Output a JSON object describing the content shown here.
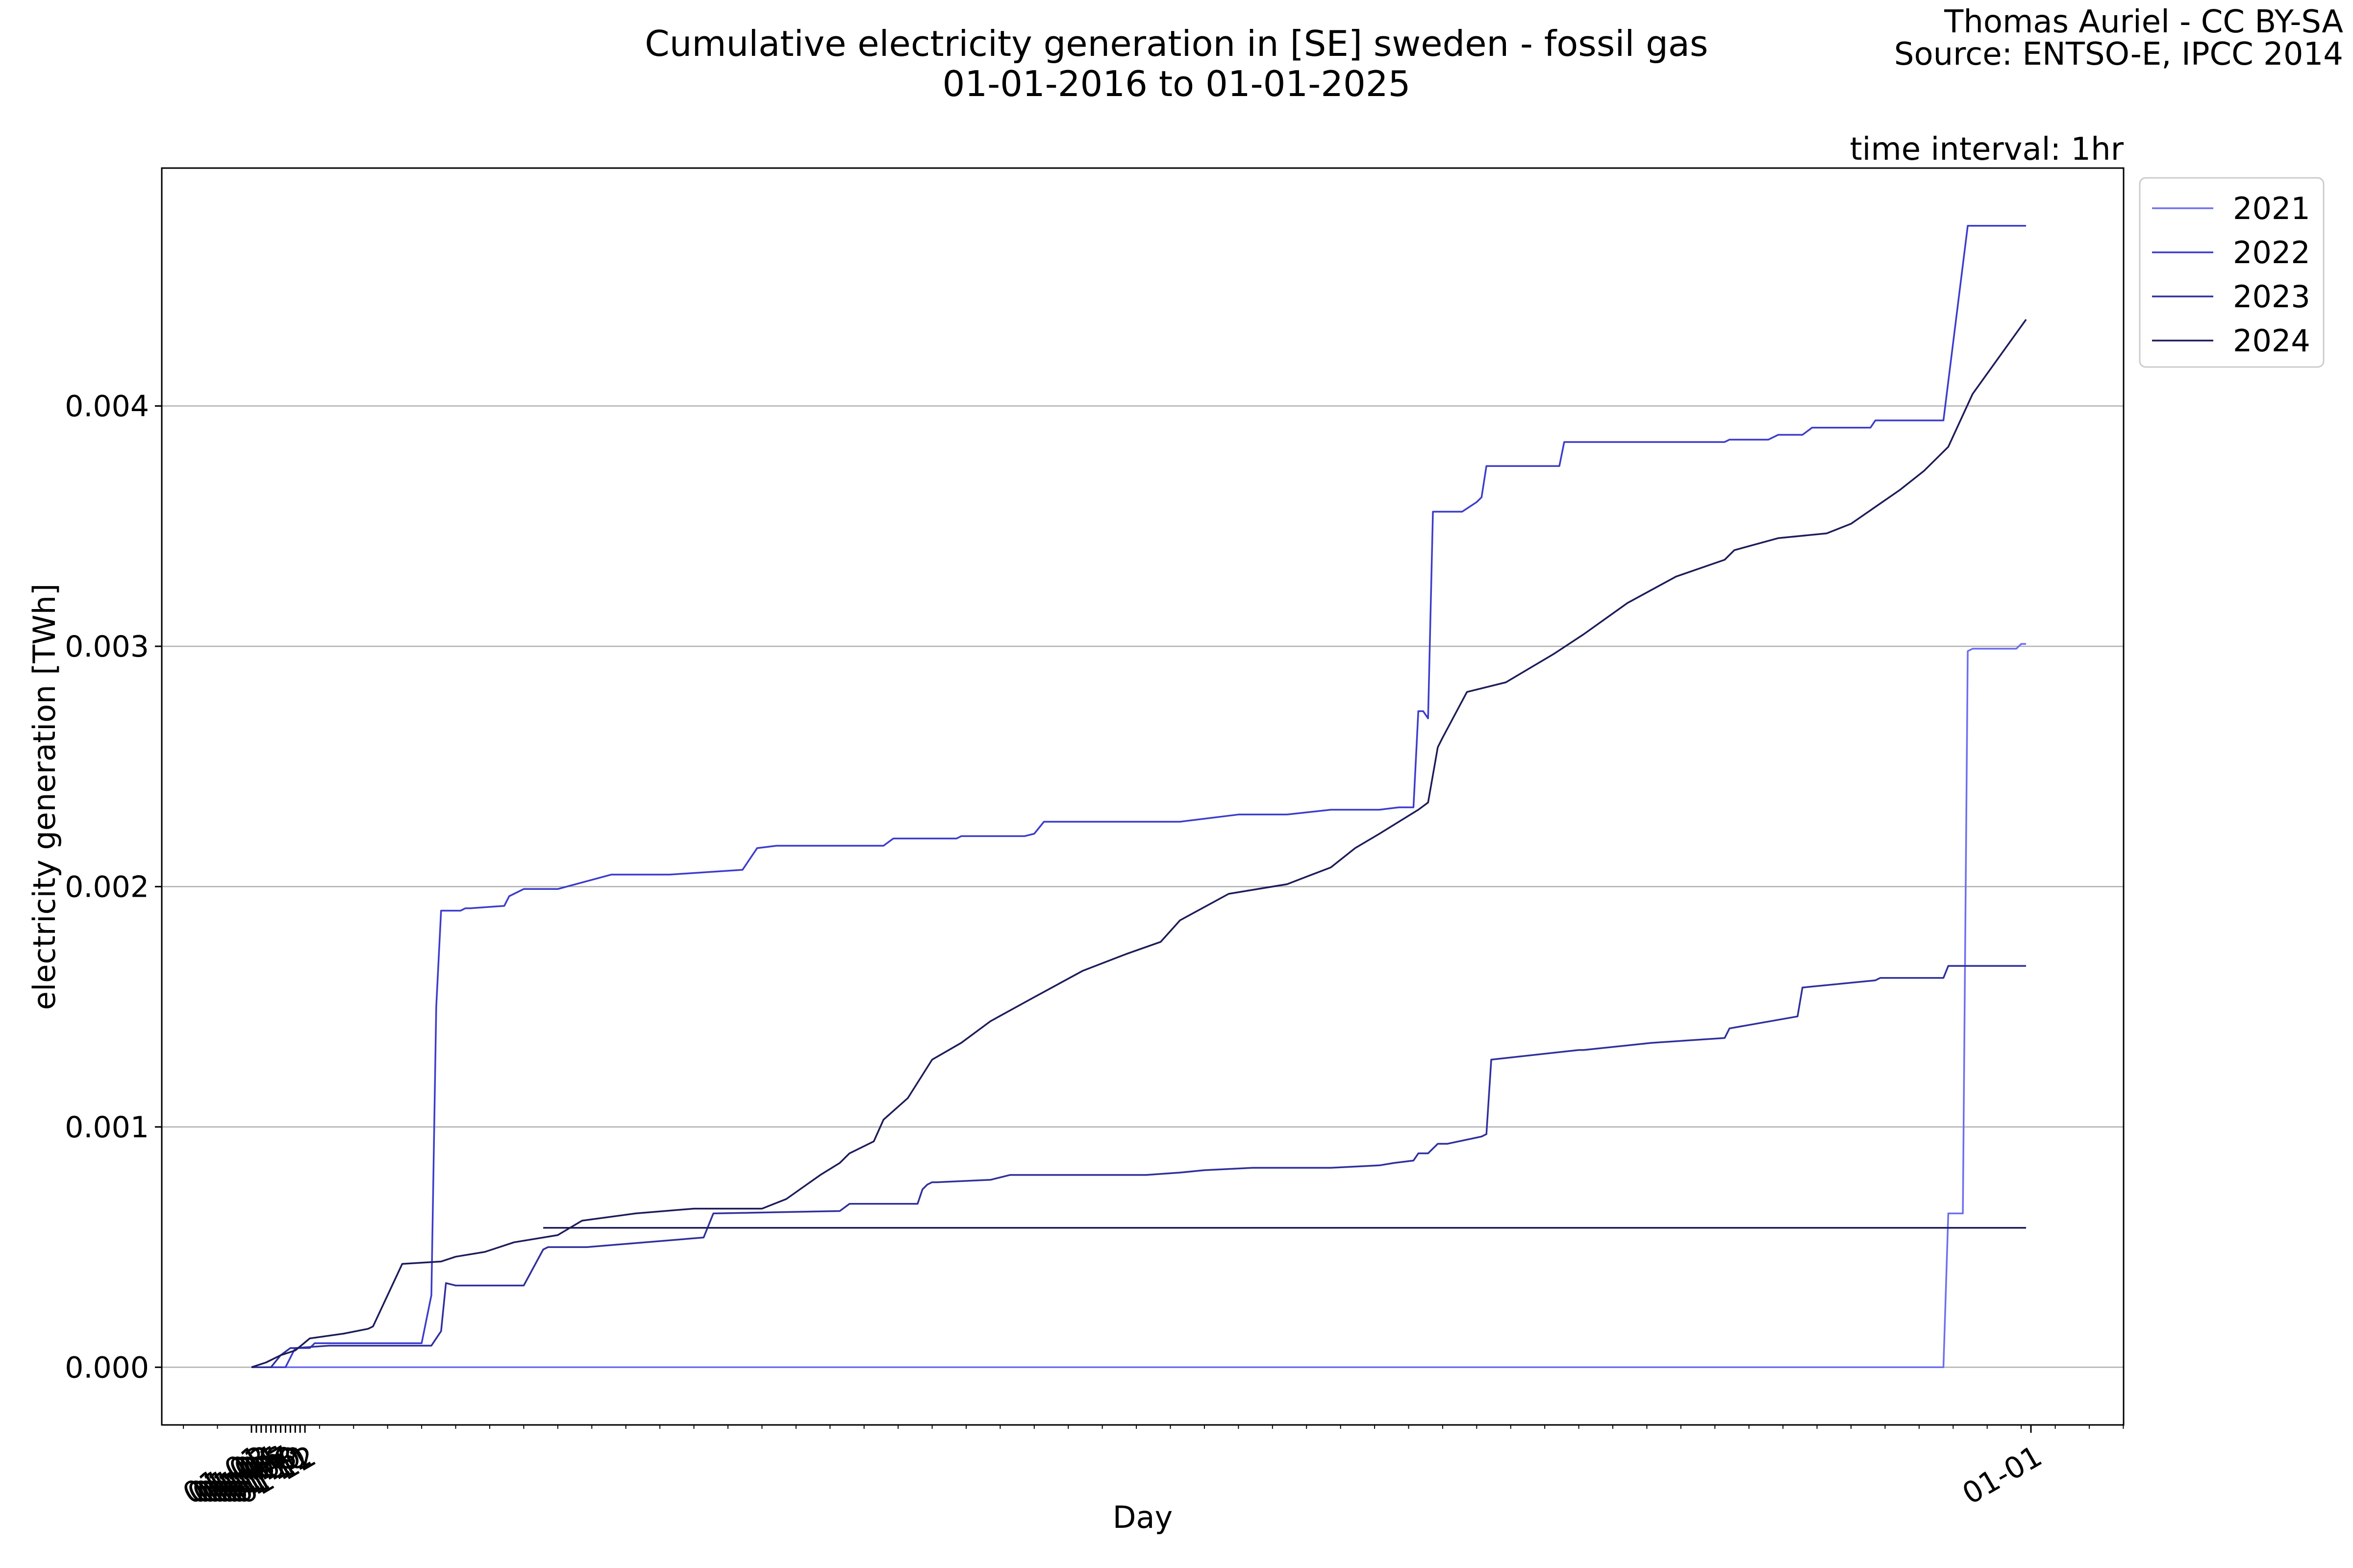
{
  "chart_data": {
    "type": "line",
    "title": "Cumulative electricity generation in [SE] sweden - fossil gas",
    "subtitle": "01-01-2016 to 01-01-2025",
    "credit": "Thomas Auriel - CC BY-SA",
    "source": "Source: ENTSO-E, IPCC 2014",
    "note": "time interval: 1hr",
    "xlabel": "Day",
    "ylabel": "electricity generation [TWh]",
    "x_ticks": [
      "01-01",
      "01-02",
      "01-03",
      "01-04",
      "01-05",
      "01-06",
      "01-07",
      "01-08",
      "01-09",
      "01-10",
      "01-11",
      "01-12",
      "01-01"
    ],
    "y_ticks": [
      "0.000",
      "0.001",
      "0.002",
      "0.003",
      "0.004"
    ],
    "ylim": [
      -0.00024,
      0.00499
    ],
    "grid": "horizontal",
    "legend_placement": "outside top-right",
    "series": [
      {
        "name": "2021",
        "color": "#6d6ff0",
        "x": [
          "01-01",
          "12-14",
          "12-15",
          "12-18",
          "12-19",
          "12-20",
          "12-29",
          "12-30",
          "12-31"
        ],
        "y": [
          0,
          0,
          0.00064,
          0.00064,
          0.00298,
          0.00299,
          0.00299,
          0.00301,
          0.00301
        ]
      },
      {
        "name": "2022",
        "color": "#3c3ccd",
        "x": [
          "01-01",
          "01-08",
          "01-10",
          "01-13",
          "01-14",
          "01-20",
          "01-30",
          "02-05",
          "02-07",
          "02-08",
          "02-09",
          "02-13",
          "02-14",
          "02-15",
          "02-22",
          "02-23",
          "02-26",
          "03-04",
          "03-15",
          "03-27",
          "04-11",
          "04-14",
          "04-18",
          "05-10",
          "05-12",
          "05-25",
          "05-26",
          "06-08",
          "06-10",
          "06-12",
          "07-08",
          "07-10",
          "07-22",
          "08-01",
          "08-10",
          "08-20",
          "08-24",
          "08-25",
          "08-27",
          "08-28",
          "08-29",
          "08-30",
          "08-31",
          "09-06",
          "09-09",
          "09-10",
          "09-11",
          "09-15",
          "09-26",
          "09-27",
          "09-30",
          "10-15",
          "10-30",
          "10-31",
          "11-08",
          "11-10",
          "11-15",
          "11-17",
          "11-29",
          "11-30",
          "12-05",
          "12-13",
          "12-14",
          "12-19",
          "12-31"
        ],
        "y": [
          0,
          0,
          8e-05,
          8e-05,
          0.0001,
          0.0001,
          0.0001,
          0.0001,
          0.0003,
          0.0015,
          0.0019,
          0.0019,
          0.00191,
          0.00191,
          0.00192,
          0.00196,
          0.00199,
          0.00199,
          0.00205,
          0.00205,
          0.00207,
          0.00216,
          0.00217,
          0.00217,
          0.0022,
          0.0022,
          0.00221,
          0.00221,
          0.00222,
          0.00227,
          0.00227,
          0.00227,
          0.0023,
          0.0023,
          0.00232,
          0.00232,
          0.00233,
          0.00233,
          0.00233,
          0.00273,
          0.00273,
          0.0027,
          0.00356,
          0.00356,
          0.0036,
          0.00362,
          0.00375,
          0.00375,
          0.00375,
          0.00385,
          0.00385,
          0.00385,
          0.00385,
          0.00386,
          0.00386,
          0.00388,
          0.00388,
          0.00391,
          0.00391,
          0.00394,
          0.00394,
          0.00394,
          0.00394,
          0.00475,
          0.00475
        ]
      },
      {
        "name": "2023",
        "color": "#2f2f9e",
        "x": [
          "01-01",
          "01-05",
          "01-07",
          "01-09",
          "01-10",
          "01-17",
          "01-25",
          "02-07",
          "02-08",
          "02-09",
          "02-10",
          "02-12",
          "02-26",
          "03-01",
          "03-02",
          "03-10",
          "04-03",
          "04-05",
          "05-01",
          "05-03",
          "05-17",
          "05-18",
          "05-19",
          "05-20",
          "05-21",
          "06-01",
          "06-05",
          "06-20",
          "07-03",
          "07-10",
          "07-15",
          "07-25",
          "08-01",
          "08-10",
          "08-20",
          "08-23",
          "08-27",
          "08-28",
          "08-29",
          "08-30",
          "09-01",
          "09-03",
          "09-10",
          "09-11",
          "09-12",
          "09-30",
          "10-01",
          "10-15",
          "10-30",
          "10-31",
          "11-14",
          "11-15",
          "11-30",
          "12-01",
          "12-14",
          "12-15",
          "12-31"
        ],
        "y": [
          0,
          0,
          5e-05,
          8e-05,
          8e-05,
          9e-05,
          9e-05,
          9e-05,
          0.00012,
          0.00015,
          0.00035,
          0.00034,
          0.00034,
          0.00049,
          0.0005,
          0.0005,
          0.00054,
          0.00064,
          0.00065,
          0.00068,
          0.00068,
          0.00074,
          0.00076,
          0.00077,
          0.00077,
          0.00078,
          0.0008,
          0.0008,
          0.0008,
          0.00081,
          0.00082,
          0.00083,
          0.00083,
          0.00083,
          0.00084,
          0.00085,
          0.00086,
          0.00089,
          0.00089,
          0.00089,
          0.00093,
          0.00093,
          0.00096,
          0.00097,
          0.00128,
          0.00132,
          0.00132,
          0.00135,
          0.00137,
          0.00141,
          0.00146,
          0.00158,
          0.00161,
          0.00162,
          0.00162,
          0.00167,
          0.00167
        ]
      },
      {
        "name": "2024",
        "color": "#1c1c5a",
        "x": [
          "01-01",
          "01-04",
          "01-07",
          "01-10",
          "01-13",
          "01-20",
          "01-25",
          "01-26",
          "02-01",
          "02-09",
          "02-12",
          "02-18",
          "02-24",
          "03-04",
          "03-09",
          "03-20",
          "04-01",
          "04-15",
          "04-20",
          "04-27",
          "05-01",
          "05-03",
          "05-08",
          "05-10",
          "05-15",
          "05-20",
          "05-26",
          "06-01",
          "06-10",
          "06-20",
          "06-29",
          "07-06",
          "07-10",
          "07-20",
          "08-01",
          "08-10",
          "08-15",
          "08-20",
          "08-28",
          "08-30",
          "09-01",
          "09-02",
          "09-07",
          "09-15",
          "09-20",
          "09-25",
          "10-01",
          "10-10",
          "10-20",
          "10-30",
          "11-01",
          "11-10",
          "11-20",
          "11-25",
          "11-30",
          "12-05",
          "12-10",
          "12-15",
          "12-20",
          "12-31"
        ],
        "y": [
          0,
          2e-05,
          5e-05,
          7e-05,
          0.00012,
          0.00014,
          0.00016,
          0.00017,
          0.00043,
          0.00044,
          0.00046,
          0.00048,
          0.00052,
          0.00055,
          0.00061,
          0.00064,
          0.00066,
          0.00066,
          0.0007,
          0.0008,
          0.00085,
          0.00089,
          0.00094,
          0.00103,
          0.00112,
          0.00128,
          0.00135,
          0.00144,
          0.00154,
          0.00165,
          0.00172,
          0.00177,
          0.00186,
          0.00197,
          0.00201,
          0.00208,
          0.00216,
          0.00222,
          0.00232,
          0.00235,
          0.00258,
          0.00262,
          0.00281,
          0.00285,
          0.00291,
          0.00297,
          0.00305,
          0.00318,
          0.00329,
          0.00336,
          0.0034,
          0.00345,
          0.00347,
          0.00351,
          0.00358,
          0.00365,
          0.00373,
          0.00383,
          0.00405,
          0.00436
        ]
      }
    ],
    "extra_line": {
      "color": "#1c1c5a",
      "x": [
        "03-01",
        "12-31"
      ],
      "y": [
        0.00058,
        0.00058
      ]
    }
  }
}
